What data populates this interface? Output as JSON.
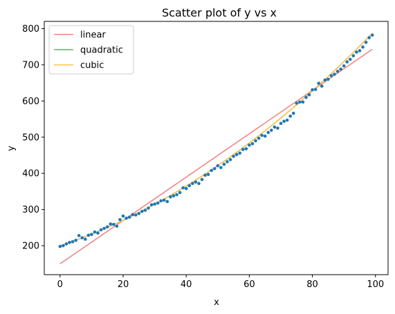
{
  "chart_data": {
    "type": "scatter",
    "title": "Scatter plot of y vs x",
    "xlabel": "x",
    "ylabel": "y",
    "xlim": [
      -5,
      104
    ],
    "ylim": [
      120,
      820
    ],
    "xticks": [
      0,
      20,
      40,
      60,
      80,
      100
    ],
    "yticks": [
      200,
      300,
      400,
      500,
      600,
      700,
      800
    ],
    "grid": false,
    "legend_position": "top-left",
    "points": {
      "color": "#1f77b4",
      "x": [
        0,
        1,
        2,
        3,
        4,
        5,
        6,
        7,
        8,
        9,
        10,
        11,
        12,
        13,
        14,
        15,
        16,
        17,
        18,
        19,
        20,
        21,
        22,
        23,
        24,
        25,
        26,
        27,
        28,
        29,
        30,
        31,
        32,
        33,
        34,
        35,
        36,
        37,
        38,
        39,
        40,
        41,
        42,
        43,
        44,
        45,
        46,
        47,
        48,
        49,
        50,
        51,
        52,
        53,
        54,
        55,
        56,
        57,
        58,
        59,
        60,
        61,
        62,
        63,
        64,
        65,
        66,
        67,
        68,
        69,
        70,
        71,
        72,
        73,
        74,
        75,
        76,
        77,
        78,
        79,
        80,
        81,
        82,
        83,
        84,
        85,
        86,
        87,
        88,
        89,
        90,
        91,
        92,
        93,
        94,
        95,
        96,
        97,
        98,
        99
      ],
      "y": [
        198,
        200,
        205,
        209,
        211,
        215,
        228,
        222,
        218,
        229,
        231,
        238,
        235,
        244,
        248,
        252,
        260,
        259,
        254,
        272,
        282,
        276,
        279,
        286,
        285,
        289,
        295,
        298,
        304,
        313,
        315,
        318,
        324,
        326,
        322,
        335,
        338,
        341,
        347,
        360,
        358,
        366,
        372,
        376,
        372,
        383,
        395,
        397,
        408,
        413,
        421,
        416,
        425,
        432,
        438,
        447,
        452,
        456,
        466,
        468,
        478,
        482,
        490,
        497,
        505,
        503,
        513,
        519,
        528,
        525,
        538,
        544,
        547,
        558,
        566,
        594,
        597,
        597,
        610,
        617,
        631,
        632,
        649,
        641,
        658,
        660,
        670,
        674,
        682,
        688,
        697,
        708,
        715,
        725,
        735,
        739,
        749,
        762,
        775,
        782
      ]
    },
    "series": [
      {
        "name": "linear",
        "color": "#f08080",
        "x": [
          0,
          99
        ],
        "y": [
          150,
          743
        ]
      },
      {
        "name": "quadratic",
        "color": "#66b266",
        "a": 0.0306,
        "b": 2.9,
        "c": 200
      },
      {
        "name": "cubic",
        "color": "#ffc04c",
        "a": 0.0306,
        "b": 2.9,
        "c": 200
      }
    ]
  }
}
